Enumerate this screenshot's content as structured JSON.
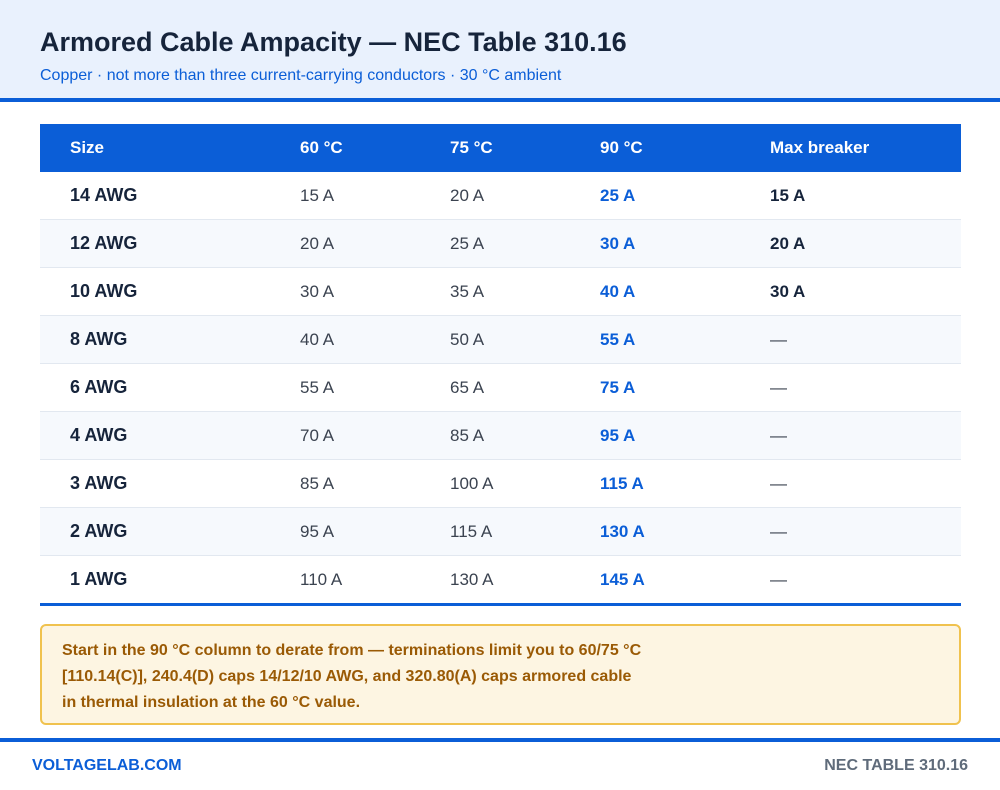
{
  "header": {
    "title": "Armored Cable Ampacity — NEC Table 310.16",
    "subtitle": "Copper · not more than three current-carrying conductors · 30 °C ambient"
  },
  "table": {
    "columns": [
      "Size",
      "60 °C",
      "75 °C",
      "90 °C",
      "Max breaker"
    ],
    "rows": [
      [
        "14 AWG",
        "15 A",
        "20 A",
        "25 A",
        "15 A"
      ],
      [
        "12 AWG",
        "20 A",
        "25 A",
        "30 A",
        "20 A"
      ],
      [
        "10 AWG",
        "30 A",
        "35 A",
        "40 A",
        "30 A"
      ],
      [
        "8 AWG",
        "40 A",
        "50 A",
        "55 A",
        "—"
      ],
      [
        "6 AWG",
        "55 A",
        "65 A",
        "75 A",
        "—"
      ],
      [
        "4 AWG",
        "70 A",
        "85 A",
        "95 A",
        "—"
      ],
      [
        "3 AWG",
        "85 A",
        "100 A",
        "115 A",
        "—"
      ],
      [
        "2 AWG",
        "95 A",
        "115 A",
        "130 A",
        "—"
      ],
      [
        "1 AWG",
        "110 A",
        "130 A",
        "145 A",
        "—"
      ]
    ]
  },
  "note": {
    "text": "Start in the 90 °C column to derate from — terminations limit you to 60/75 °C [110.14(C)], 240.4(D) caps 14/12/10 AWG, and 320.80(A) caps armored cable in thermal insulation at the 60 °C value."
  },
  "footer": {
    "brand": "VOLTAGELAB.COM",
    "reference": "NEC TABLE 310.16"
  },
  "colors": {
    "accent": "#0b5ed7",
    "note_background": "#fdf5e2",
    "note_border": "#f0c24e",
    "note_text": "#9a5a05"
  }
}
